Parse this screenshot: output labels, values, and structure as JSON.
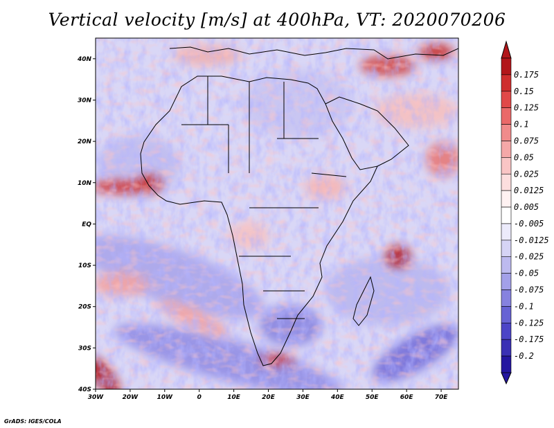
{
  "title": "Vertical velocity [m/s] at 400hPa, VT: 2020070206",
  "credit": "GrADS: IGES/COLA",
  "map": {
    "lon_range": [
      -30,
      75
    ],
    "lat_range": [
      -40,
      45
    ],
    "lon_ticks": [
      "30W",
      "20W",
      "10W",
      "0",
      "10E",
      "20E",
      "30E",
      "40E",
      "50E",
      "60E",
      "70E"
    ],
    "lat_ticks": [
      "40N",
      "30N",
      "20N",
      "10N",
      "EQ",
      "10S",
      "20S",
      "30S",
      "40S"
    ],
    "field": "vertical velocity",
    "level": "400hPa",
    "valid_time": "2020070206"
  },
  "colorbar": {
    "labels": [
      "0.175",
      "0.15",
      "0.125",
      "0.1",
      "0.075",
      "0.05",
      "0.025",
      "0.0125",
      "0.005",
      "-0.005",
      "-0.0125",
      "-0.025",
      "-0.05",
      "-0.075",
      "-0.1",
      "-0.125",
      "-0.175",
      "-0.2"
    ],
    "colors": [
      "#b2161a",
      "#cf2e2e",
      "#e04848",
      "#ea6969",
      "#f08b8b",
      "#f5a8a8",
      "#f9c5c5",
      "#fcdede",
      "#fff2f2",
      "#ffffff",
      "#ecebfb",
      "#d6d4f5",
      "#bdbaef",
      "#a3a0e8",
      "#8682df",
      "#6763d4",
      "#4c45c7",
      "#3a30b4",
      "#2416a0"
    ],
    "top_arrow_color": "#b2161a",
    "bottom_arrow_color": "#2416a0"
  }
}
